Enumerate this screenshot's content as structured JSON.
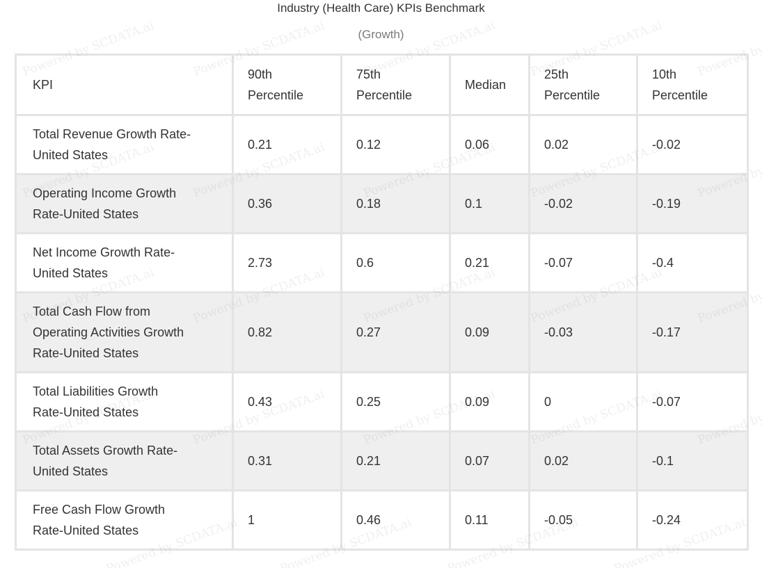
{
  "title": "Industry (Health Care) KPIs Benchmark",
  "subtitle": "(Growth)",
  "watermark": "Powered by SCDATA.ai",
  "table": {
    "headers": [
      {
        "line1": "KPI",
        "line2": ""
      },
      {
        "line1": "90th",
        "line2": "Percentile"
      },
      {
        "line1": "75th",
        "line2": "Percentile"
      },
      {
        "line1": "Median",
        "line2": ""
      },
      {
        "line1": "25th",
        "line2": "Percentile"
      },
      {
        "line1": "10th",
        "line2": "Percentile"
      }
    ],
    "rows": [
      {
        "kpi": [
          "Total Revenue Growth Rate-",
          "United States"
        ],
        "p90": "0.21",
        "p75": "0.12",
        "median": "0.06",
        "p25": "0.02",
        "p10": "-0.02"
      },
      {
        "kpi": [
          "Operating Income Growth",
          "Rate-United States"
        ],
        "p90": "0.36",
        "p75": "0.18",
        "median": "0.1",
        "p25": "-0.02",
        "p10": "-0.19"
      },
      {
        "kpi": [
          "Net Income Growth Rate-",
          "United States"
        ],
        "p90": "2.73",
        "p75": "0.6",
        "median": "0.21",
        "p25": "-0.07",
        "p10": "-0.4"
      },
      {
        "kpi": [
          "Total Cash Flow from",
          "Operating Activities Growth",
          "Rate-United States"
        ],
        "p90": "0.82",
        "p75": "0.27",
        "median": "0.09",
        "p25": "-0.03",
        "p10": "-0.17"
      },
      {
        "kpi": [
          "Total Liabilities Growth",
          "Rate-United States"
        ],
        "p90": "0.43",
        "p75": "0.25",
        "median": "0.09",
        "p25": "0",
        "p10": "-0.07"
      },
      {
        "kpi": [
          "Total Assets Growth Rate-",
          "United States"
        ],
        "p90": "0.31",
        "p75": "0.21",
        "median": "0.07",
        "p25": "0.02",
        "p10": "-0.1"
      },
      {
        "kpi": [
          "Free Cash Flow Growth",
          "Rate-United States"
        ],
        "p90": "1",
        "p75": "0.46",
        "median": "0.11",
        "p25": "-0.05",
        "p10": "-0.24"
      }
    ]
  }
}
